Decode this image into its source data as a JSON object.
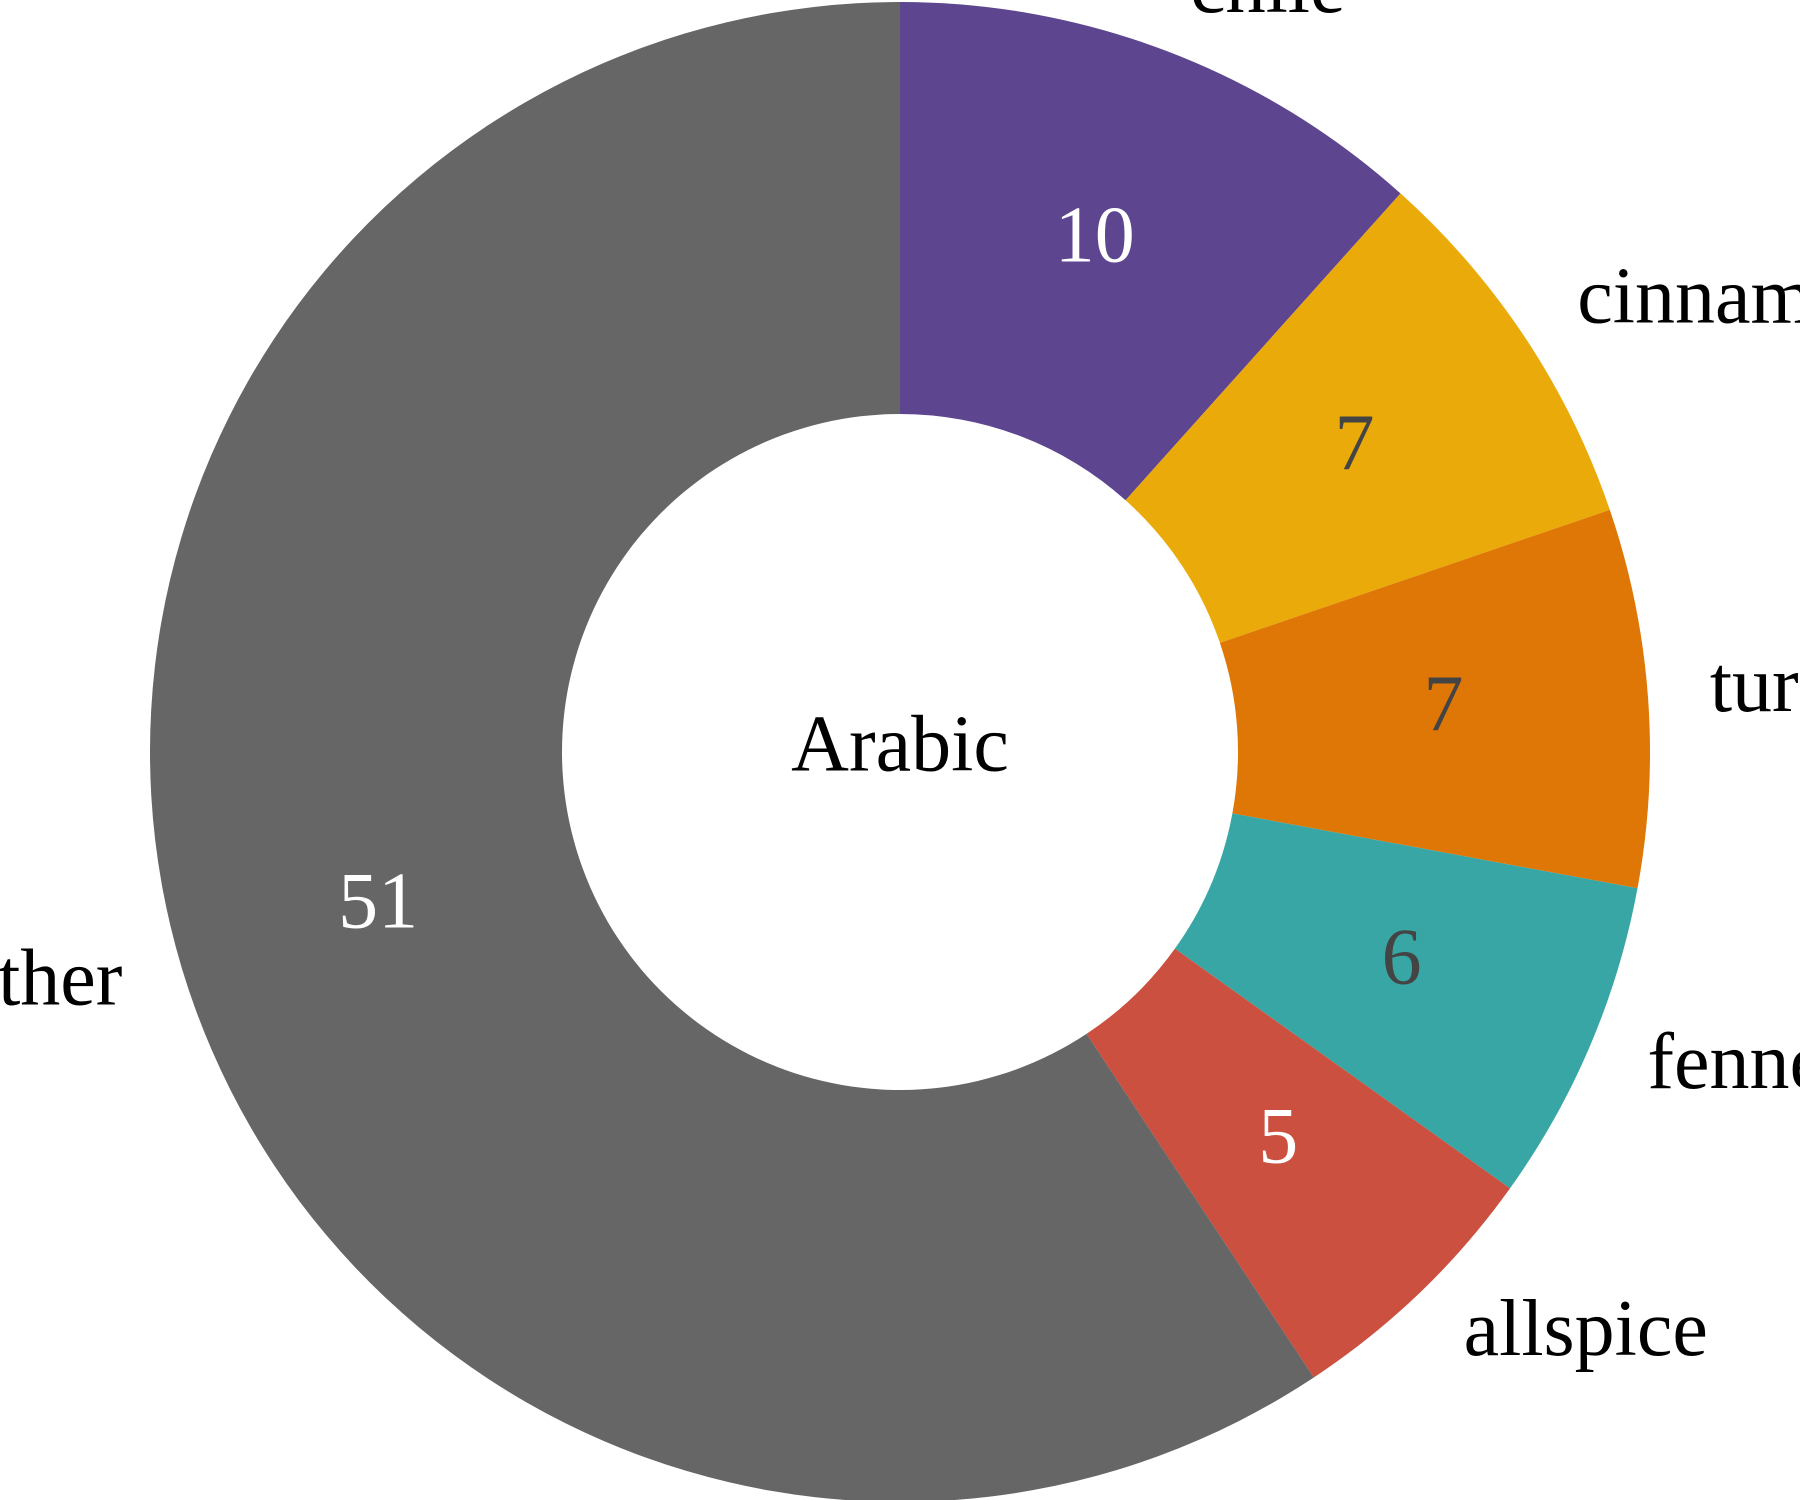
{
  "chart_data": {
    "type": "pie",
    "variant": "donut",
    "center_label": "Arabic",
    "categories": [
      "chile",
      "cinnamon",
      "turmeric",
      "fennel",
      "allspice",
      "other"
    ],
    "values": [
      10,
      7,
      7,
      6,
      5,
      51
    ],
    "colors": [
      "#5e4590",
      "#eaab0a",
      "#df7706",
      "#38a6a5",
      "#cc5040",
      "#666666"
    ],
    "value_label_colors": [
      "#ffffff",
      "#444444",
      "#444444",
      "#444444",
      "#ffffff",
      "#ffffff"
    ],
    "start": "12 o'clock",
    "direction": "clockwise",
    "legend": "none"
  }
}
